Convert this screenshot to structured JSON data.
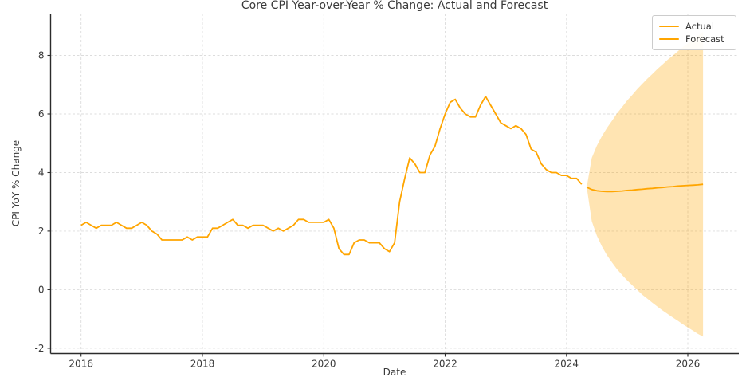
{
  "chart_data": {
    "type": "line",
    "title": "Core CPI Year-over-Year % Change: Actual and Forecast",
    "xlabel": "Date",
    "ylabel": "CPI YoY % Change",
    "x_ticks": [
      2016,
      2018,
      2020,
      2022,
      2024,
      2026
    ],
    "y_ticks": [
      -2,
      0,
      2,
      4,
      6,
      8
    ],
    "xlim": [
      2015.498,
      2026.84
    ],
    "ylim": [
      -2.18,
      9.43
    ],
    "grid": true,
    "grid_style": "dashed",
    "legend_position": "upper right",
    "colors": {
      "line": "#FFA500",
      "band_fill": "#FFA500",
      "band_opacity": 0.3,
      "grid": "#dcdcdc",
      "axis": "#2b2b2b",
      "text": "#3a3a3a"
    },
    "series": [
      {
        "name": "Actual",
        "color": "#FFA500",
        "start": "2016-01",
        "values": [
          2.2,
          2.3,
          2.2,
          2.1,
          2.2,
          2.2,
          2.2,
          2.3,
          2.2,
          2.1,
          2.1,
          2.2,
          2.3,
          2.2,
          2.0,
          1.9,
          1.7,
          1.7,
          1.7,
          1.7,
          1.7,
          1.8,
          1.7,
          1.8,
          1.8,
          1.8,
          2.1,
          2.1,
          2.2,
          2.3,
          2.4,
          2.2,
          2.2,
          2.1,
          2.2,
          2.2,
          2.2,
          2.1,
          2.0,
          2.1,
          2.0,
          2.1,
          2.2,
          2.4,
          2.4,
          2.3,
          2.3,
          2.3,
          2.3,
          2.4,
          2.1,
          1.4,
          1.2,
          1.2,
          1.6,
          1.7,
          1.7,
          1.6,
          1.6,
          1.6,
          1.4,
          1.3,
          1.6,
          3.0,
          3.8,
          4.5,
          4.3,
          4.0,
          4.0,
          4.6,
          4.9,
          5.5,
          6.0,
          6.4,
          6.5,
          6.2,
          6.0,
          5.9,
          5.9,
          6.3,
          6.6,
          6.3,
          6.0,
          5.7,
          5.6,
          5.5,
          5.6,
          5.5,
          5.3,
          4.8,
          4.7,
          4.3,
          4.1,
          4.0,
          4.0,
          3.9,
          3.9,
          3.8,
          3.8,
          3.6
        ]
      },
      {
        "name": "Forecast",
        "color": "#FFA500",
        "start": "2024-05",
        "values": [
          3.5,
          3.42,
          3.38,
          3.36,
          3.35,
          3.35,
          3.36,
          3.37,
          3.39,
          3.4,
          3.42,
          3.43,
          3.45,
          3.46,
          3.48,
          3.49,
          3.51,
          3.52,
          3.54,
          3.55,
          3.56,
          3.57,
          3.58,
          3.6
        ],
        "band": {
          "upper": [
            3.5,
            4.5,
            4.91,
            5.24,
            5.52,
            5.77,
            6.02,
            6.24,
            6.46,
            6.65,
            6.85,
            7.03,
            7.21,
            7.37,
            7.54,
            7.69,
            7.85,
            7.99,
            8.14,
            8.28,
            8.41,
            8.54,
            8.67,
            8.8
          ],
          "lower": [
            3.5,
            2.34,
            1.85,
            1.48,
            1.18,
            0.93,
            0.7,
            0.5,
            0.32,
            0.15,
            -0.01,
            -0.17,
            -0.31,
            -0.45,
            -0.58,
            -0.71,
            -0.83,
            -0.95,
            -1.06,
            -1.18,
            -1.29,
            -1.4,
            -1.51,
            -1.6
          ]
        }
      }
    ]
  }
}
